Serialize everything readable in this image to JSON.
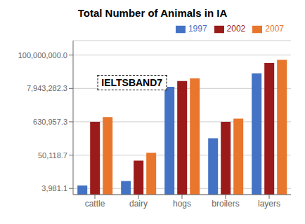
{
  "chart_data": {
    "type": "bar",
    "title": "Total Number of Animals in IA",
    "categories": [
      "cattle",
      "dairy",
      "hogs",
      "broilers",
      "layers"
    ],
    "series": [
      {
        "name": "1997",
        "color": "#4472C4",
        "values": [
          5000,
          7000,
          9000000,
          180000,
          25000000
        ]
      },
      {
        "name": "2002",
        "color": "#9B1B1B",
        "values": [
          630000,
          33000,
          14000000,
          630000,
          55000000
        ]
      },
      {
        "name": "2007",
        "color": "#E8762C",
        "values": [
          900000,
          60000,
          17000000,
          800000,
          70000000
        ]
      }
    ],
    "log": "y",
    "ylim": [
      2500,
      300000000
    ],
    "yticks": [
      {
        "value": 3981.1,
        "label": "3,981.1"
      },
      {
        "value": 50118.7,
        "label": "50,118.7"
      },
      {
        "value": 630957.3,
        "label": "630,957.3"
      },
      {
        "value": 7943282.3,
        "label": "7,943,282.3"
      },
      {
        "value": 100000000.0,
        "label": "100,000,000.0"
      }
    ],
    "grid": true,
    "legend": "upper right",
    "annotations": [
      "IELTSBAND7"
    ]
  }
}
